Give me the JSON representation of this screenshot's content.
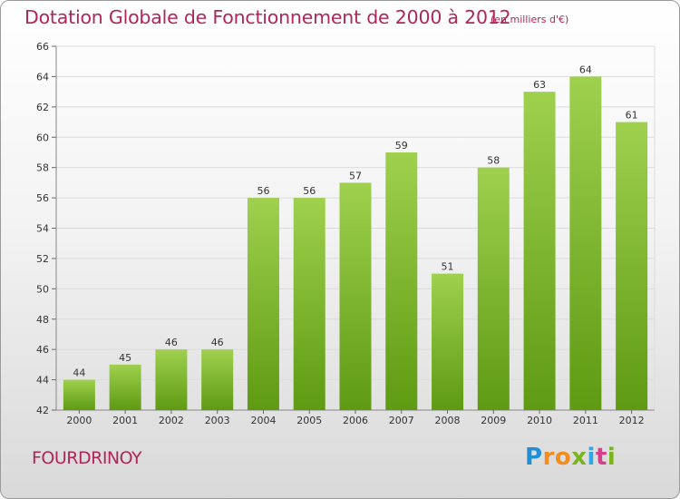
{
  "header": {
    "title": "Dotation Globale de Fonctionnement de 2000 à 2012",
    "unit": "(en milliers d'€)"
  },
  "commune": "FOURDRINOY",
  "logo": {
    "letters": [
      "P",
      "r",
      "o",
      "x",
      "i",
      "t",
      "i"
    ],
    "colors": [
      "#1f8fd6",
      "#f28c1c",
      "#f28c1c",
      "#7ab51d",
      "#2fa7e0",
      "#d63f8c",
      "#7ab51d"
    ]
  },
  "chart_data": {
    "type": "bar",
    "title": "Dotation Globale de Fonctionnement de 2000 à 2012",
    "xlabel": "",
    "ylabel": "en milliers d'€",
    "categories": [
      "2000",
      "2001",
      "2002",
      "2003",
      "2004",
      "2005",
      "2006",
      "2007",
      "2008",
      "2009",
      "2010",
      "2011",
      "2012"
    ],
    "values": [
      44,
      45,
      46,
      46,
      56,
      56,
      57,
      59,
      51,
      58,
      63,
      64,
      61
    ],
    "ylim": [
      42,
      66
    ],
    "yticks": [
      42,
      44,
      46,
      48,
      50,
      52,
      54,
      56,
      58,
      60,
      62,
      64,
      66
    ],
    "grid": true,
    "bar_color_top": "#9fd14e",
    "bar_color_bottom": "#5e9a12"
  }
}
